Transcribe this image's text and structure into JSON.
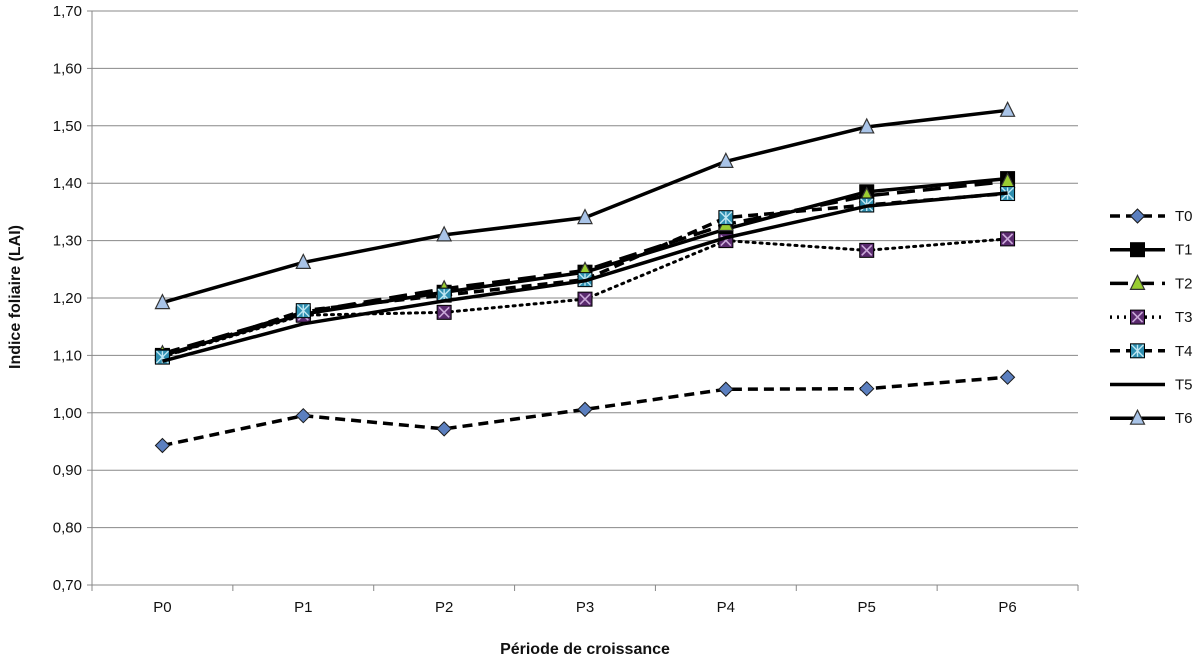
{
  "chart_data": {
    "type": "line",
    "title": "",
    "xlabel": "Période de croissance",
    "ylabel": "Indice foliaire (LAI)",
    "categories": [
      "P0",
      "P1",
      "P2",
      "P3",
      "P4",
      "P5",
      "P6"
    ],
    "ylim": [
      0.7,
      1.7
    ],
    "yticks": [
      "0,70",
      "0,80",
      "0,90",
      "1,00",
      "1,10",
      "1,20",
      "1,30",
      "1,40",
      "1,50",
      "1,60",
      "1,70"
    ],
    "grid": true,
    "legend_position": "right",
    "series": [
      {
        "name": "T0",
        "values": [
          0.943,
          0.995,
          0.972,
          1.006,
          1.041,
          1.042,
          1.062
        ],
        "line": "dashed",
        "marker": "diamond",
        "marker_color": "#5b7fbf"
      },
      {
        "name": "T1",
        "values": [
          1.1,
          1.172,
          1.21,
          1.245,
          1.32,
          1.385,
          1.408
        ],
        "line": "solid",
        "marker": "square",
        "marker_color": "#000000"
      },
      {
        "name": "T2",
        "values": [
          1.103,
          1.175,
          1.216,
          1.248,
          1.328,
          1.378,
          1.403
        ],
        "line": "longdash",
        "marker": "triangle",
        "marker_color": "#9acd32"
      },
      {
        "name": "T3",
        "values": [
          1.098,
          1.17,
          1.175,
          1.198,
          1.3,
          1.283,
          1.303
        ],
        "line": "dotted",
        "marker": "x-square",
        "marker_color": "#5a2a6e"
      },
      {
        "name": "T4",
        "values": [
          1.097,
          1.178,
          1.205,
          1.232,
          1.34,
          1.362,
          1.382
        ],
        "line": "dashed",
        "marker": "star-square",
        "marker_color": "#2e8fb0"
      },
      {
        "name": "T5",
        "values": [
          1.09,
          1.155,
          1.195,
          1.23,
          1.305,
          1.36,
          1.383
        ],
        "line": "solid",
        "marker": "none",
        "marker_color": "#000000"
      },
      {
        "name": "T6",
        "values": [
          1.192,
          1.262,
          1.31,
          1.34,
          1.438,
          1.498,
          1.527
        ],
        "line": "solid",
        "marker": "triangle",
        "marker_color": "#a9c4e8"
      }
    ]
  }
}
